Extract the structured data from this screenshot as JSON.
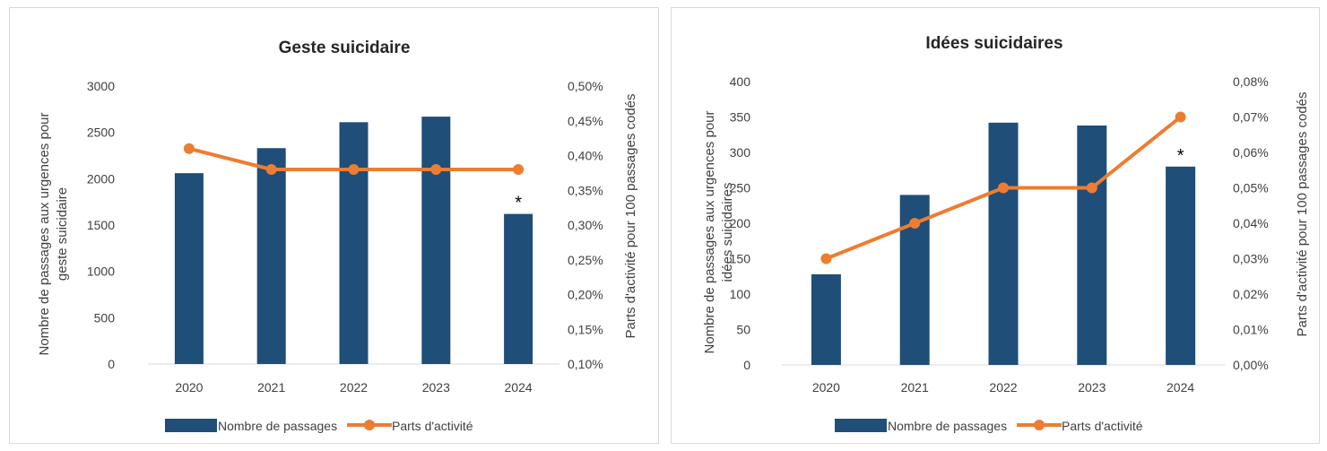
{
  "colors": {
    "bar": "#1f4e79",
    "line": "#ed7d31",
    "axis": "#d9d9d9"
  },
  "chart_data": [
    {
      "type": "bar+line",
      "title": "Geste suicidaire",
      "categories": [
        "2020",
        "2021",
        "2022",
        "2023",
        "2024"
      ],
      "y_left_label": "Nombre de passages aux urgences pour geste suicidaire",
      "y_right_label": "Parts d'activité pour 100 passages codés",
      "y_left_range": [
        0,
        3000
      ],
      "y_left_ticks": [
        "0",
        "500",
        "1000",
        "1500",
        "2000",
        "2500",
        "3000"
      ],
      "y_right_range": [
        0.1,
        0.5
      ],
      "y_right_ticks": [
        "0,10%",
        "0,15%",
        "0,20%",
        "0,25%",
        "0,30%",
        "0,35%",
        "0,40%",
        "0,45%",
        "0,50%"
      ],
      "series": [
        {
          "name": "Nombre de passages",
          "kind": "bar",
          "axis": "left",
          "values": [
            2060,
            2330,
            2610,
            2670,
            1620
          ]
        },
        {
          "name": "Parts d'activité",
          "kind": "line",
          "axis": "right",
          "values": [
            0.41,
            0.38,
            0.38,
            0.38,
            0.38
          ]
        }
      ],
      "annotation": {
        "category": "2024",
        "text": "*"
      },
      "legend_position": "bottom"
    },
    {
      "type": "bar+line",
      "title": "Idées suicidaires",
      "categories": [
        "2020",
        "2021",
        "2022",
        "2023",
        "2024"
      ],
      "y_left_label": "Nombre de passages aux urgences pour idées suicidaires",
      "y_right_label": "Parts d'activité pour 100 passages codés",
      "y_left_range": [
        0,
        400
      ],
      "y_left_ticks": [
        "0",
        "50",
        "100",
        "150",
        "200",
        "250",
        "300",
        "350",
        "400"
      ],
      "y_right_range": [
        0.0,
        0.08
      ],
      "y_right_ticks": [
        "0,00%",
        "0,01%",
        "0,02%",
        "0,03%",
        "0,04%",
        "0,05%",
        "0,06%",
        "0,07%",
        "0,08%"
      ],
      "series": [
        {
          "name": "Nombre de passages",
          "kind": "bar",
          "axis": "left",
          "values": [
            128,
            240,
            342,
            338,
            280
          ]
        },
        {
          "name": "Parts d'activité",
          "kind": "line",
          "axis": "right",
          "values": [
            0.03,
            0.04,
            0.05,
            0.05,
            0.07
          ]
        }
      ],
      "annotation": {
        "category": "2024",
        "text": "*"
      },
      "legend_position": "bottom"
    }
  ]
}
